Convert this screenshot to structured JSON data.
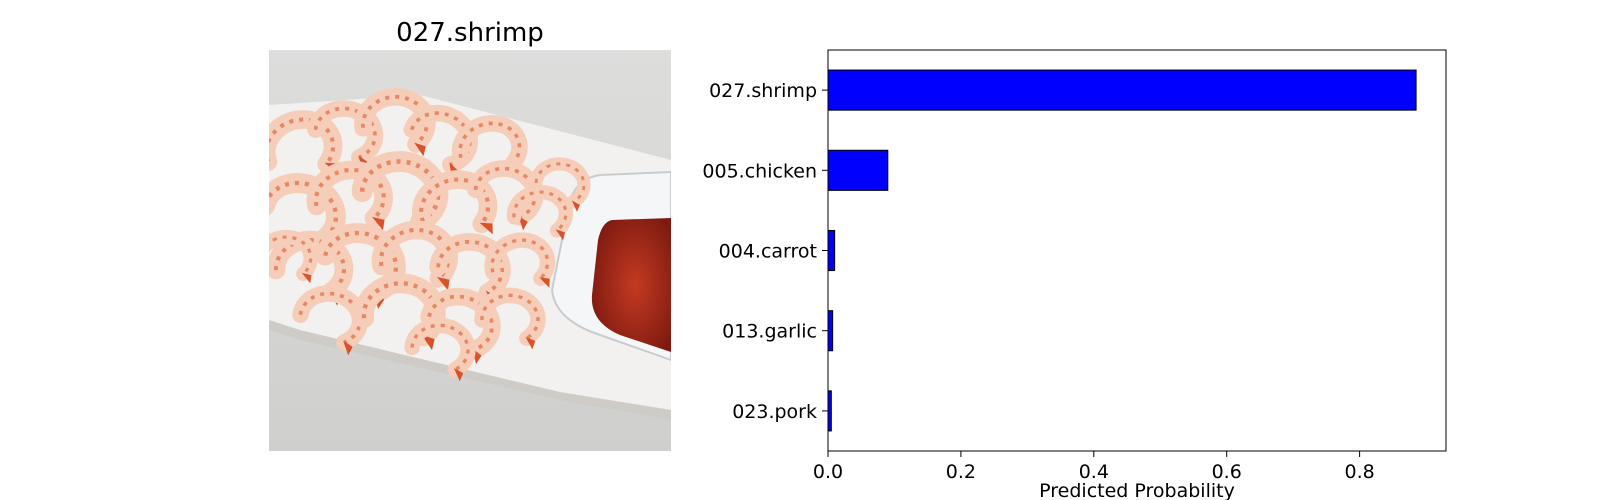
{
  "image_panel": {
    "title": "027.shrimp",
    "photo_subject": "shrimp-photo",
    "colors": {
      "background": "#d9d9d8",
      "plate": "#f2f1ef",
      "plate_shadow": "#cfccc8",
      "bowl": "#f5f6f7",
      "sauce": "#b02a1a",
      "sauce_dark": "#7e1a10",
      "shrimp_body": "#f6cdb8",
      "shrimp_stripe": "#e4764e",
      "shrimp_tail": "#d9532a"
    }
  },
  "chart_data": {
    "type": "bar",
    "orientation": "horizontal",
    "categories": [
      "027.shrimp",
      "005.chicken",
      "004.carrot",
      "013.garlic",
      "023.pork"
    ],
    "values": [
      0.885,
      0.09,
      0.01,
      0.007,
      0.005
    ],
    "xlabel": "Predicted Probability",
    "xlim": [
      0,
      0.93
    ],
    "xticks": [
      0.0,
      0.2,
      0.4,
      0.6,
      0.8
    ],
    "xtick_labels": [
      "0.0",
      "0.2",
      "0.4",
      "0.6",
      "0.8"
    ],
    "grid": false,
    "bar_color": "#0000ff",
    "bar_edge_color": "#000000"
  }
}
